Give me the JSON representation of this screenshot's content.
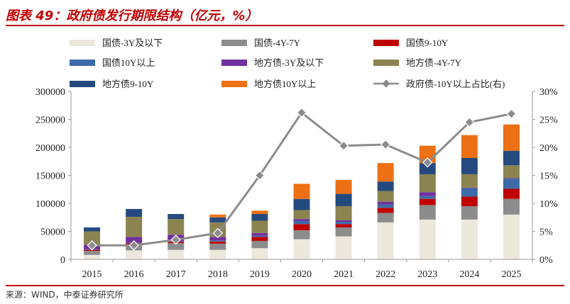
{
  "page": {
    "title": "图表 49：政府债发行期限结构（亿元，%）",
    "source": "来源：WIND，中泰证券研究所"
  },
  "chart_data": {
    "type": "bar",
    "stacked": true,
    "categories": [
      "2015",
      "2016",
      "2017",
      "2018",
      "2019",
      "2020",
      "2021",
      "2022",
      "2023",
      "2024",
      "2025"
    ],
    "y_left": {
      "lim": [
        0,
        300000
      ],
      "ticks": [
        "0",
        "50000",
        "100000",
        "150000",
        "200000",
        "250000",
        "300000"
      ]
    },
    "y_right": {
      "lim": [
        0,
        30
      ],
      "ticks": [
        "0%",
        "5%",
        "10%",
        "15%",
        "20%",
        "25%",
        "30%"
      ]
    },
    "grid": false,
    "legend_position": "top",
    "series": [
      {
        "name": "国债-3Y及以下",
        "color": "#ede8dc",
        "values": [
          8000,
          16000,
          17000,
          17000,
          20000,
          36000,
          41000,
          66000,
          71000,
          71000,
          80000
        ]
      },
      {
        "name": "国债-4Y-7Y",
        "color": "#8c8c8c",
        "values": [
          7000,
          10000,
          12000,
          11000,
          13000,
          16000,
          16000,
          17000,
          26000,
          24000,
          28000
        ]
      },
      {
        "name": "国债9-10Y",
        "color": "#c00000",
        "values": [
          2000,
          3000,
          2000,
          4000,
          7000,
          11000,
          6000,
          9000,
          11000,
          17000,
          18000
        ]
      },
      {
        "name": "国债10Y以上",
        "color": "#3d6aa8",
        "values": [
          1000,
          1000,
          1000,
          2000,
          2000,
          6000,
          4000,
          6000,
          5000,
          15000,
          18000
        ]
      },
      {
        "name": "地方债-3Y及以下",
        "color": "#7030a0",
        "values": [
          8000,
          10000,
          12000,
          6000,
          5000,
          3000,
          3000,
          5000,
          7000,
          1000,
          1000
        ]
      },
      {
        "name": "地方债-4Y-7Y",
        "color": "#8c8450",
        "values": [
          24000,
          36000,
          28000,
          26000,
          22000,
          16000,
          25000,
          19000,
          32000,
          24000,
          23000
        ]
      },
      {
        "name": "地方债9-10Y",
        "color": "#254a7f",
        "values": [
          7000,
          14000,
          9000,
          9000,
          12000,
          20000,
          22000,
          17000,
          20000,
          29000,
          26000
        ]
      },
      {
        "name": "地方债10Y以上",
        "color": "#ed7014",
        "values": [
          0,
          0,
          0,
          5000,
          6000,
          27000,
          25000,
          33000,
          31000,
          41000,
          47000
        ]
      }
    ],
    "line_series": {
      "name": "政府债-10Y以上占比(右)",
      "axis": "right",
      "color": "#8c8c8c",
      "values": [
        2.5,
        2.5,
        3.5,
        4.7,
        15.0,
        26.2,
        20.3,
        20.5,
        17.3,
        24.5,
        26.0
      ]
    }
  }
}
